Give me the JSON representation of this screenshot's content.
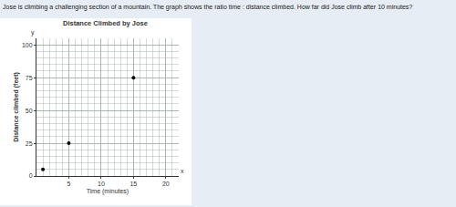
{
  "question": "Jose is climbing a challenging section of a mountain. The graph shows the ratio time : distance climbed. How far did Jose climb after 10 minutes?",
  "chart_data": {
    "type": "scatter",
    "title": "Distance Climbed by Jose",
    "x_label": "Time (minutes)",
    "y_label": "Distance climbed (feet)",
    "x": [
      1,
      5,
      15
    ],
    "values": [
      5,
      25,
      75
    ],
    "color": "#000000",
    "marker": "circle",
    "xlim": [
      0,
      22
    ],
    "ylim": [
      0,
      105
    ],
    "xticks": [
      5,
      10,
      15,
      20
    ],
    "yticks": [
      0,
      25,
      50,
      75,
      100
    ],
    "grid": true,
    "annotations": [
      "y",
      "x"
    ]
  }
}
